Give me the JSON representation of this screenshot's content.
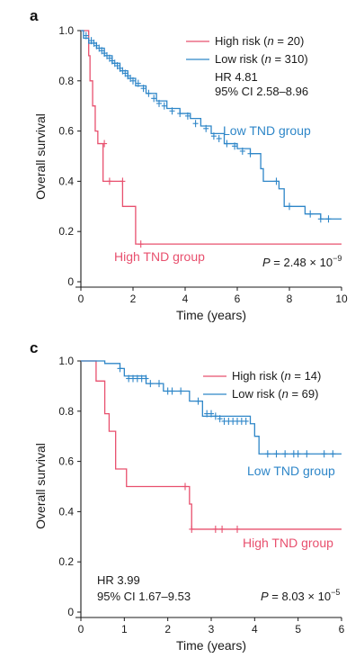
{
  "chart_data": [
    {
      "type": "line",
      "panel": "a",
      "xlabel": "Time (years)",
      "ylabel": "Overall survival",
      "xlim": [
        0,
        10
      ],
      "ylim": [
        0,
        1.0
      ],
      "x_ticks": [
        "0",
        "2",
        "4",
        "6",
        "8",
        "10"
      ],
      "y_ticks": [
        "0",
        "0.2",
        "0.4",
        "0.6",
        "0.8",
        "1.0"
      ],
      "legend_position": "top-right",
      "series": [
        {
          "name_prefix": "High risk (",
          "name_n": "n",
          "name_suffix": " = 20)",
          "color": "#e8506e",
          "group_label": "High TND group",
          "x": [
            0,
            0.3,
            0.35,
            0.45,
            0.55,
            0.65,
            0.85,
            1.6,
            2.1,
            2.25,
            10
          ],
          "y": [
            1.0,
            0.9,
            0.8,
            0.7,
            0.6,
            0.55,
            0.4,
            0.3,
            0.15,
            0.15,
            0.15
          ],
          "censor": [
            [
              0.9,
              0.55
            ],
            [
              1.1,
              0.4
            ],
            [
              1.6,
              0.4
            ],
            [
              2.3,
              0.15
            ]
          ]
        },
        {
          "name_prefix": "Low risk (",
          "name_n": "n",
          "name_suffix": " = 310)",
          "color": "#2e86c8",
          "group_label": "Low TND group",
          "x": [
            0,
            0.1,
            0.3,
            0.6,
            0.9,
            1.2,
            1.5,
            1.8,
            2.1,
            2.5,
            2.9,
            3.3,
            3.8,
            4.2,
            4.6,
            5.0,
            5.5,
            6.0,
            6.5,
            6.8,
            6.9,
            7.0,
            7.5,
            7.6,
            7.8,
            8.6,
            9.2,
            10
          ],
          "y": [
            1.0,
            0.97,
            0.95,
            0.93,
            0.9,
            0.87,
            0.84,
            0.81,
            0.78,
            0.75,
            0.72,
            0.69,
            0.67,
            0.65,
            0.62,
            0.59,
            0.55,
            0.53,
            0.51,
            0.51,
            0.45,
            0.4,
            0.4,
            0.37,
            0.3,
            0.27,
            0.25,
            0.25
          ],
          "censor": [
            [
              0.2,
              0.98
            ],
            [
              0.4,
              0.96
            ],
            [
              0.5,
              0.95
            ],
            [
              0.6,
              0.94
            ],
            [
              0.7,
              0.93
            ],
            [
              0.8,
              0.92
            ],
            [
              0.9,
              0.91
            ],
            [
              1.0,
              0.9
            ],
            [
              1.1,
              0.89
            ],
            [
              1.2,
              0.88
            ],
            [
              1.3,
              0.87
            ],
            [
              1.4,
              0.86
            ],
            [
              1.5,
              0.85
            ],
            [
              1.6,
              0.84
            ],
            [
              1.7,
              0.83
            ],
            [
              1.8,
              0.82
            ],
            [
              1.9,
              0.81
            ],
            [
              2.0,
              0.8
            ],
            [
              2.2,
              0.79
            ],
            [
              2.4,
              0.77
            ],
            [
              2.6,
              0.75
            ],
            [
              2.8,
              0.73
            ],
            [
              3.0,
              0.71
            ],
            [
              3.2,
              0.7
            ],
            [
              3.5,
              0.68
            ],
            [
              3.8,
              0.67
            ],
            [
              4.1,
              0.66
            ],
            [
              4.4,
              0.63
            ],
            [
              4.8,
              0.61
            ],
            [
              5.1,
              0.58
            ],
            [
              5.3,
              0.57
            ],
            [
              5.6,
              0.55
            ],
            [
              5.9,
              0.54
            ],
            [
              6.2,
              0.52
            ],
            [
              6.5,
              0.51
            ],
            [
              7.5,
              0.4
            ],
            [
              8.0,
              0.3
            ],
            [
              8.8,
              0.27
            ],
            [
              9.2,
              0.25
            ],
            [
              9.5,
              0.25
            ]
          ]
        }
      ],
      "hr_text": "HR 4.81",
      "ci_text": "95% CI 2.58–8.96",
      "p_prefix": "P",
      "p_value": " = 2.48 × 10",
      "p_exp": "−9"
    },
    {
      "type": "line",
      "panel": "c",
      "xlabel": "Time (years)",
      "ylabel": "Overall survival",
      "xlim": [
        0,
        6
      ],
      "ylim": [
        0,
        1.0
      ],
      "x_ticks": [
        "0",
        "1",
        "2",
        "3",
        "4",
        "5",
        "6"
      ],
      "y_ticks": [
        "0",
        "0.2",
        "0.4",
        "0.6",
        "0.8",
        "1.0"
      ],
      "legend_position": "top-right",
      "series": [
        {
          "name_prefix": "High risk (",
          "name_n": "n",
          "name_suffix": " = 14)",
          "color": "#e8506e",
          "group_label": "High TND group",
          "x": [
            0,
            0.35,
            0.55,
            0.65,
            0.8,
            1.05,
            2.5,
            2.55,
            6
          ],
          "y": [
            1.0,
            0.92,
            0.79,
            0.72,
            0.57,
            0.5,
            0.43,
            0.33,
            0.33
          ],
          "censor": [
            [
              2.4,
              0.5
            ],
            [
              2.55,
              0.33
            ],
            [
              3.1,
              0.33
            ],
            [
              3.25,
              0.33
            ],
            [
              3.6,
              0.33
            ]
          ]
        },
        {
          "name_prefix": "Low risk (",
          "name_n": "n",
          "name_suffix": " = 69)",
          "color": "#2e86c8",
          "group_label": "Low TND group",
          "x": [
            0,
            0.55,
            0.9,
            1.0,
            1.5,
            1.9,
            2.5,
            2.8,
            3.9,
            4.0,
            4.1,
            6
          ],
          "y": [
            1.0,
            0.99,
            0.97,
            0.94,
            0.91,
            0.88,
            0.84,
            0.78,
            0.75,
            0.7,
            0.63,
            0.63
          ],
          "censor": [
            [
              0.9,
              0.97
            ],
            [
              1.1,
              0.93
            ],
            [
              1.2,
              0.93
            ],
            [
              1.3,
              0.93
            ],
            [
              1.4,
              0.93
            ],
            [
              1.5,
              0.93
            ],
            [
              1.6,
              0.91
            ],
            [
              1.8,
              0.91
            ],
            [
              2.0,
              0.88
            ],
            [
              2.1,
              0.88
            ],
            [
              2.3,
              0.88
            ],
            [
              2.7,
              0.84
            ],
            [
              2.9,
              0.79
            ],
            [
              3.0,
              0.79
            ],
            [
              3.1,
              0.78
            ],
            [
              3.2,
              0.77
            ],
            [
              3.3,
              0.76
            ],
            [
              3.4,
              0.76
            ],
            [
              3.5,
              0.76
            ],
            [
              3.6,
              0.76
            ],
            [
              3.7,
              0.76
            ],
            [
              3.8,
              0.76
            ],
            [
              4.3,
              0.63
            ],
            [
              4.5,
              0.63
            ],
            [
              4.7,
              0.63
            ],
            [
              4.9,
              0.63
            ],
            [
              5.0,
              0.63
            ],
            [
              5.2,
              0.63
            ],
            [
              5.6,
              0.63
            ],
            [
              5.8,
              0.63
            ]
          ]
        }
      ],
      "hr_text": "HR 3.99",
      "ci_text": "95% CI 1.67–9.53",
      "p_prefix": "P",
      "p_value": " = 8.03 × 10",
      "p_exp": "−5"
    }
  ]
}
